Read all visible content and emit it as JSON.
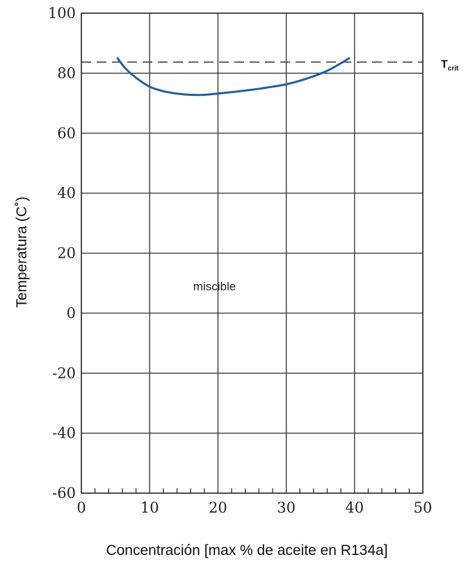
{
  "chart_data": {
    "type": "line",
    "xlabel": "Concentración [max % de aceite en R134a]",
    "ylabel": "Temperatura (C˚)",
    "xlim": [
      0,
      50
    ],
    "ylim": [
      -60,
      100
    ],
    "x_ticks": [
      "0",
      "10",
      "20",
      "30",
      "40",
      "50"
    ],
    "y_ticks": [
      "100",
      "80",
      "60",
      "40",
      "20",
      "0",
      "-20",
      "-40",
      "-60"
    ],
    "grid": true,
    "minor_x_tick_step": 2,
    "series": [
      {
        "color": "#1f5fa0",
        "x": [
          5.3,
          6.5,
          8,
          10,
          12,
          14,
          16,
          18,
          20,
          22,
          24,
          26,
          28,
          30,
          32,
          34,
          36,
          38,
          39.2
        ],
        "y": [
          85,
          81.5,
          78.5,
          75.5,
          74,
          73.2,
          72.8,
          72.8,
          73.2,
          73.7,
          74.2,
          74.8,
          75.5,
          76.3,
          77.5,
          79,
          80.8,
          83.3,
          85
        ]
      }
    ],
    "reference_line": {
      "y": 83.7,
      "label_main": "T",
      "label_sub": "crit",
      "style": "dashed"
    },
    "annotations": [
      {
        "text": "miscible",
        "x": 19.5,
        "y": 9
      }
    ]
  }
}
